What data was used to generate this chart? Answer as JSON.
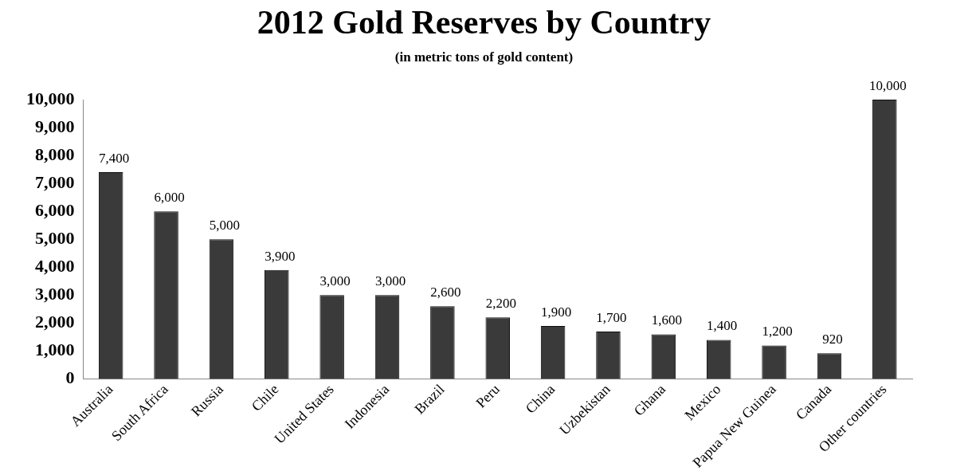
{
  "chart_data": {
    "type": "bar",
    "title": "2012 Gold Reserves by Country",
    "subtitle": "(in metric tons of gold content)",
    "categories": [
      "Australia",
      "South Africa",
      "Russia",
      "Chile",
      "United States",
      "Indonesia",
      "Brazil",
      "Peru",
      "China",
      "Uzbekistan",
      "Ghana",
      "Mexico",
      "Papua New Guinea",
      "Canada",
      "Other countries"
    ],
    "values": [
      7400,
      6000,
      5000,
      3900,
      3000,
      3000,
      2600,
      2200,
      1900,
      1700,
      1600,
      1400,
      1200,
      920,
      10000
    ],
    "value_labels": [
      "7,400",
      "6,000",
      "5,000",
      "3,900",
      "3,000",
      "3,000",
      "2,600",
      "2,200",
      "1,900",
      "1,700",
      "1,600",
      "1,400",
      "1,200",
      "920",
      "10,000"
    ],
    "color": "#3a3a3a",
    "ylim": [
      0,
      10000
    ],
    "yticks": [
      {
        "value": 0,
        "label": "0"
      },
      {
        "value": 1000,
        "label": "1,000"
      },
      {
        "value": 2000,
        "label": "2,000"
      },
      {
        "value": 3000,
        "label": "3,000"
      },
      {
        "value": 4000,
        "label": "4,000"
      },
      {
        "value": 5000,
        "label": "5,000"
      },
      {
        "value": 6000,
        "label": "6,000"
      },
      {
        "value": 7000,
        "label": "7,000"
      },
      {
        "value": 8000,
        "label": "8,000"
      },
      {
        "value": 9000,
        "label": "9,000"
      },
      {
        "value": 10000,
        "label": "10,000"
      }
    ],
    "grid": false,
    "legend": false
  }
}
